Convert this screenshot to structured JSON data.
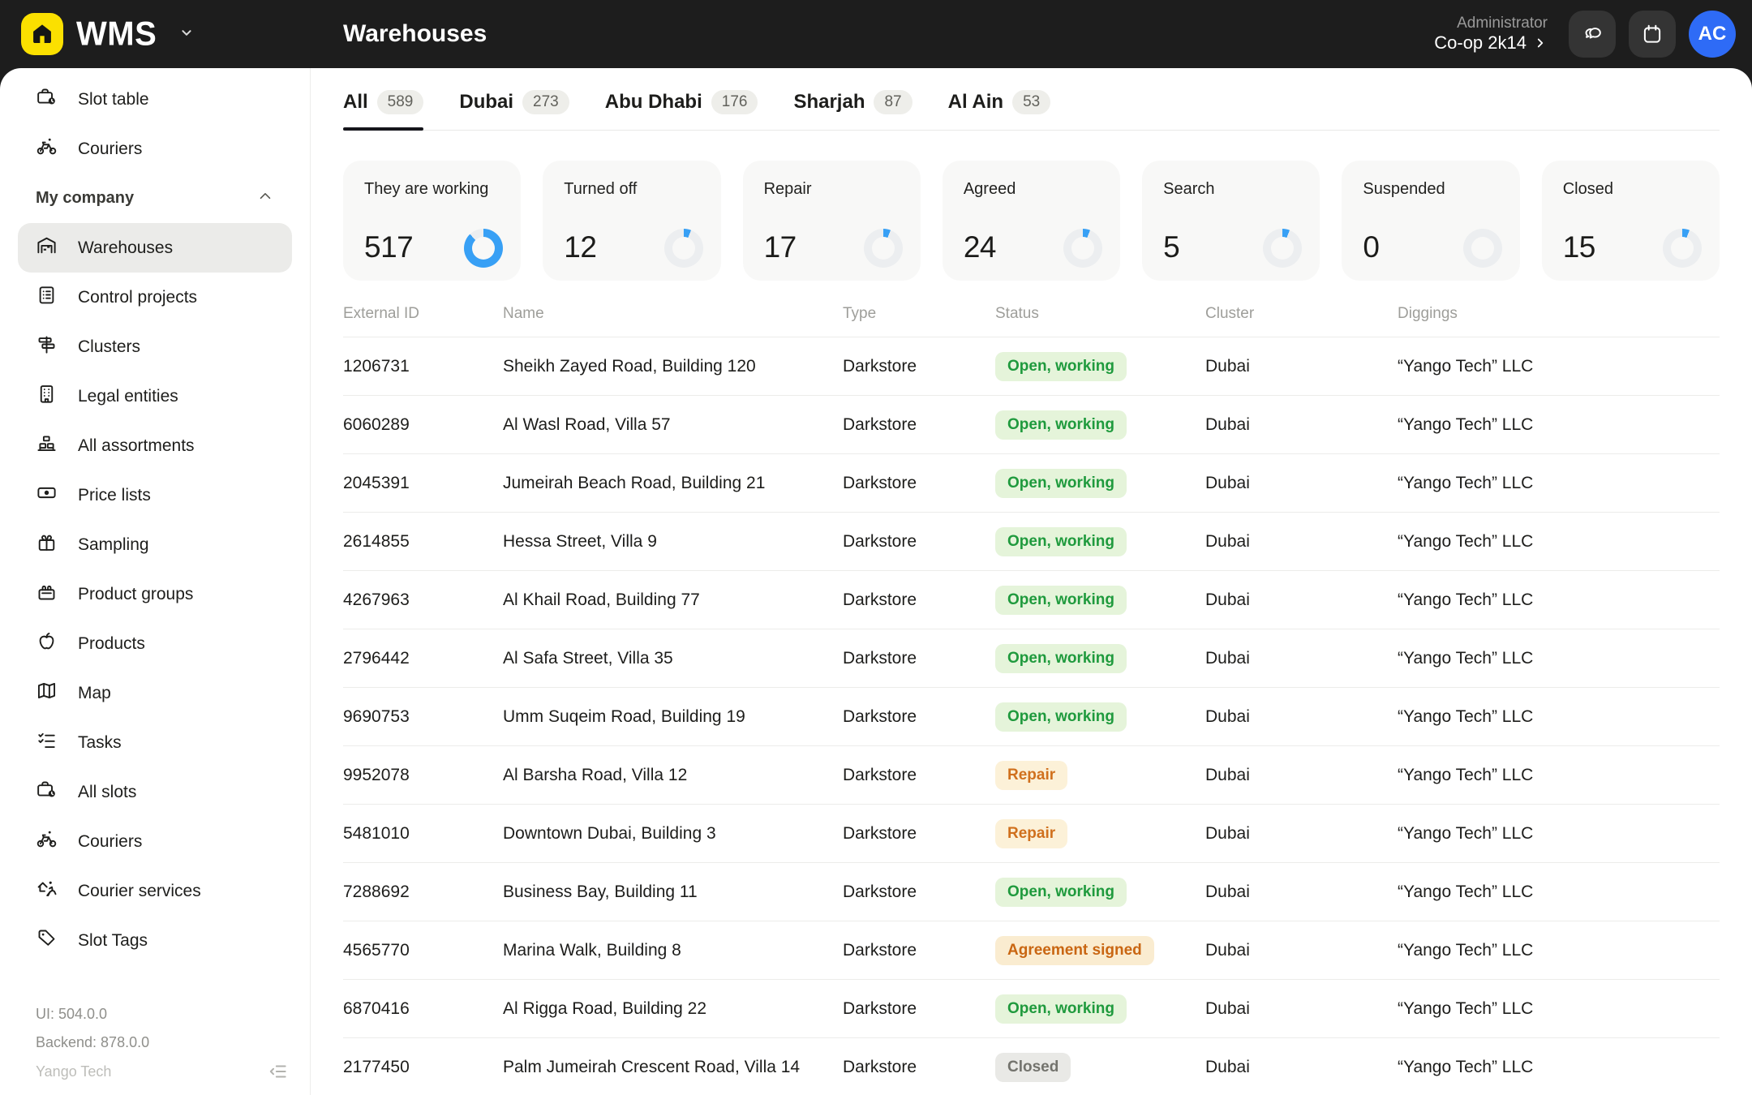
{
  "header": {
    "logo_text": "WMS",
    "logo_icon": "home-logo-icon",
    "page_title": "Warehouses",
    "user_role": "Administrator",
    "user_org": "Co-op 2k14",
    "avatar_initials": "AC",
    "icon_buttons": [
      {
        "icon": "chat-icon"
      },
      {
        "icon": "calendar-icon"
      }
    ]
  },
  "sidebar": {
    "items": [
      {
        "icon": "slot-table-icon",
        "label": "Slot table"
      },
      {
        "icon": "courier-bicycle-icon",
        "label": "Couriers"
      },
      {
        "type": "section",
        "icon": "chevron-up-icon",
        "label": "My company"
      },
      {
        "icon": "warehouse-icon",
        "label": "Warehouses",
        "selected": true
      },
      {
        "icon": "clipboard-list-icon",
        "label": "Control projects"
      },
      {
        "icon": "signpost-icon",
        "label": "Clusters"
      },
      {
        "icon": "office-building-icon",
        "label": "Legal entities"
      },
      {
        "icon": "shelf-boxes-icon",
        "label": "All assortments"
      },
      {
        "icon": "banknote-icon",
        "label": "Price lists"
      },
      {
        "icon": "gift-icon",
        "label": "Sampling"
      },
      {
        "icon": "crate-icon",
        "label": "Product groups"
      },
      {
        "icon": "apple-icon",
        "label": "Products"
      },
      {
        "icon": "map-icon",
        "label": "Map"
      },
      {
        "icon": "checklist-icon",
        "label": "Tasks"
      },
      {
        "icon": "slot-table-icon",
        "label": "All slots"
      },
      {
        "icon": "courier-bicycle-icon",
        "label": "Couriers"
      },
      {
        "icon": "courier-service-icon",
        "label": "Courier services"
      },
      {
        "icon": "tag-icon",
        "label": "Slot Tags"
      }
    ],
    "footer": {
      "ui_version": "UI: 504.0.0",
      "backend_version": "Backend: 878.0.0",
      "brand": "Yango Tech",
      "collapse_icon": "collapse-sidebar-icon"
    }
  },
  "tabs": [
    {
      "label": "All",
      "count": "589",
      "active": true
    },
    {
      "label": "Dubai",
      "count": "273"
    },
    {
      "label": "Abu Dhabi",
      "count": "176"
    },
    {
      "label": "Sharjah",
      "count": "87"
    },
    {
      "label": "Al Ain",
      "count": "53"
    }
  ],
  "status_cards": [
    {
      "label": "They are working",
      "value": 517
    },
    {
      "label": "Turned off",
      "value": 12
    },
    {
      "label": "Repair",
      "value": 17
    },
    {
      "label": "Agreed",
      "value": 24
    },
    {
      "label": "Search",
      "value": 5
    },
    {
      "label": "Suspended",
      "value": 0
    },
    {
      "label": "Closed",
      "value": 15
    }
  ],
  "table": {
    "columns": [
      "External ID",
      "Name",
      "Type",
      "Status",
      "Cluster",
      "Diggings"
    ],
    "rows": [
      {
        "external_id": "1206731",
        "name": "Sheikh Zayed Road, Building 120",
        "type": "Darkstore",
        "status": {
          "label": "Open, working",
          "kind": "open"
        },
        "cluster": "Dubai",
        "diggings": "“Yango Tech” LLC"
      },
      {
        "external_id": "6060289",
        "name": "Al Wasl Road, Villa 57",
        "type": "Darkstore",
        "status": {
          "label": "Open, working",
          "kind": "open"
        },
        "cluster": "Dubai",
        "diggings": "“Yango Tech” LLC"
      },
      {
        "external_id": "2045391",
        "name": "Jumeirah Beach Road, Building 21",
        "type": "Darkstore",
        "status": {
          "label": "Open, working",
          "kind": "open"
        },
        "cluster": "Dubai",
        "diggings": "“Yango Tech” LLC"
      },
      {
        "external_id": "2614855",
        "name": "Hessa Street, Villa 9",
        "type": "Darkstore",
        "status": {
          "label": "Open, working",
          "kind": "open"
        },
        "cluster": "Dubai",
        "diggings": "“Yango Tech” LLC"
      },
      {
        "external_id": "4267963",
        "name": "Al Khail Road, Building 77",
        "type": "Darkstore",
        "status": {
          "label": "Open, working",
          "kind": "open"
        },
        "cluster": "Dubai",
        "diggings": "“Yango Tech” LLC"
      },
      {
        "external_id": "2796442",
        "name": "Al Safa Street, Villa 35",
        "type": "Darkstore",
        "status": {
          "label": "Open, working",
          "kind": "open"
        },
        "cluster": "Dubai",
        "diggings": "“Yango Tech” LLC"
      },
      {
        "external_id": "9690753",
        "name": "Umm Suqeim Road, Building 19",
        "type": "Darkstore",
        "status": {
          "label": "Open, working",
          "kind": "open"
        },
        "cluster": "Dubai",
        "diggings": "“Yango Tech” LLC"
      },
      {
        "external_id": "9952078",
        "name": "Al Barsha Road, Villa 12",
        "type": "Darkstore",
        "status": {
          "label": "Repair",
          "kind": "repair"
        },
        "cluster": "Dubai",
        "diggings": "“Yango Tech” LLC"
      },
      {
        "external_id": "5481010",
        "name": "Downtown Dubai, Building 3",
        "type": "Darkstore",
        "status": {
          "label": "Repair",
          "kind": "repair"
        },
        "cluster": "Dubai",
        "diggings": "“Yango Tech” LLC"
      },
      {
        "external_id": "7288692",
        "name": "Business Bay, Building 11",
        "type": "Darkstore",
        "status": {
          "label": "Open, working",
          "kind": "open"
        },
        "cluster": "Dubai",
        "diggings": "“Yango Tech” LLC"
      },
      {
        "external_id": "4565770",
        "name": "Marina Walk, Building 8",
        "type": "Darkstore",
        "status": {
          "label": "Agreement signed",
          "kind": "agreement"
        },
        "cluster": "Dubai",
        "diggings": "“Yango Tech” LLC"
      },
      {
        "external_id": "6870416",
        "name": "Al Rigga Road, Building 22",
        "type": "Darkstore",
        "status": {
          "label": "Open, working",
          "kind": "open"
        },
        "cluster": "Dubai",
        "diggings": "“Yango Tech” LLC"
      },
      {
        "external_id": "2177450",
        "name": "Palm Jumeirah Crescent Road, Villa 14",
        "type": "Darkstore",
        "status": {
          "label": "Closed",
          "kind": "closed"
        },
        "cluster": "Dubai",
        "diggings": "“Yango Tech” LLC"
      }
    ]
  },
  "colors": {
    "topbar_bg": "#1d1d1d",
    "brand_yellow": "#fbe000",
    "avatar_blue": "#2e6bf6",
    "donut_blue": "#38a0f5",
    "donut_track": "#eceef0",
    "status_green": "#1f9a3d",
    "status_orange": "#d0701d",
    "status_gray": "#73736d"
  }
}
